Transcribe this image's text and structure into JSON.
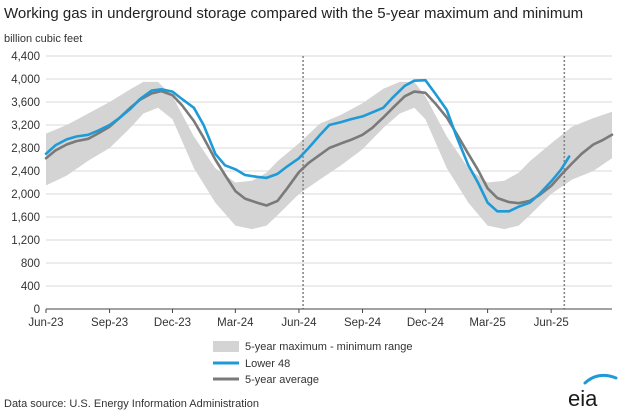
{
  "chart_data": {
    "type": "line",
    "title": "Working gas in underground storage compared with the 5-year maximum and minimum",
    "ylabel": "billion cubic feet",
    "xlabel": "",
    "ylim": [
      0,
      4400
    ],
    "yticks": [
      0,
      400,
      800,
      1200,
      1600,
      2000,
      2400,
      2800,
      3200,
      3600,
      4000,
      4400
    ],
    "ytick_labels": [
      "0",
      "400",
      "800",
      "1,200",
      "1,600",
      "2,000",
      "2,400",
      "2,800",
      "3,200",
      "3,600",
      "4,000",
      "4,400"
    ],
    "xlim": [
      "2023-06-01",
      "2025-08-28"
    ],
    "xticks": [
      "2023-06-01",
      "2023-09-01",
      "2023-12-01",
      "2024-03-01",
      "2024-06-01",
      "2024-09-01",
      "2024-12-01",
      "2025-03-01",
      "2025-06-01"
    ],
    "xtick_labels": [
      "Jun-23",
      "Sep-23",
      "Dec-23",
      "Mar-24",
      "Jun-24",
      "Sep-24",
      "Dec-24",
      "Mar-25",
      "Jun-25"
    ],
    "grid": "horizontal",
    "legend_position": "bottom-center",
    "vertical_markers": [
      "2024-06-07",
      "2025-06-20"
    ],
    "range_band": {
      "name": "5-year maximum - minimum range",
      "color": "#d4d4d4",
      "x": [
        "2023-06-01",
        "2023-07-01",
        "2023-08-01",
        "2023-09-01",
        "2023-10-01",
        "2023-10-20",
        "2023-11-10",
        "2023-12-01",
        "2024-01-01",
        "2024-02-01",
        "2024-03-01",
        "2024-03-25",
        "2024-04-15",
        "2024-05-01",
        "2024-06-01",
        "2024-07-01",
        "2024-08-01",
        "2024-09-01",
        "2024-10-01",
        "2024-10-25",
        "2024-11-15",
        "2024-12-01",
        "2025-01-01",
        "2025-02-01",
        "2025-03-01",
        "2025-03-25",
        "2025-04-15",
        "2025-05-01",
        "2025-06-01",
        "2025-07-01",
        "2025-08-01",
        "2025-08-28"
      ],
      "max": [
        3050,
        3200,
        3400,
        3600,
        3820,
        3950,
        3950,
        3700,
        3000,
        2450,
        2200,
        2230,
        2370,
        2570,
        2880,
        3220,
        3380,
        3580,
        3830,
        3950,
        3950,
        3700,
        3000,
        2450,
        2200,
        2230,
        2370,
        2570,
        2880,
        3170,
        3320,
        3430
      ],
      "min": [
        2150,
        2320,
        2580,
        2800,
        3150,
        3400,
        3500,
        3300,
        2450,
        1850,
        1450,
        1390,
        1450,
        1630,
        2000,
        2250,
        2500,
        2780,
        3150,
        3400,
        3500,
        3300,
        2450,
        1850,
        1450,
        1390,
        1450,
        1630,
        2000,
        2250,
        2400,
        2620
      ]
    },
    "series": [
      {
        "name": "Lower 48",
        "color": "#1e9bd7",
        "x": [
          "2023-06-01",
          "2023-06-15",
          "2023-07-01",
          "2023-07-15",
          "2023-08-01",
          "2023-08-15",
          "2023-09-01",
          "2023-09-15",
          "2023-10-01",
          "2023-10-15",
          "2023-11-01",
          "2023-11-15",
          "2023-12-01",
          "2023-12-15",
          "2024-01-01",
          "2024-01-15",
          "2024-02-01",
          "2024-02-15",
          "2024-03-01",
          "2024-03-15",
          "2024-04-01",
          "2024-04-15",
          "2024-05-01",
          "2024-05-15",
          "2024-06-01",
          "2024-06-15",
          "2024-07-01",
          "2024-07-15",
          "2024-08-01",
          "2024-08-15",
          "2024-09-01",
          "2024-09-15",
          "2024-10-01",
          "2024-10-15",
          "2024-11-01",
          "2024-11-15",
          "2024-12-01",
          "2024-12-15",
          "2025-01-01",
          "2025-01-15",
          "2025-02-01",
          "2025-02-15",
          "2025-03-01",
          "2025-03-15",
          "2025-04-01",
          "2025-04-15",
          "2025-05-01",
          "2025-05-15",
          "2025-06-01",
          "2025-06-15",
          "2025-06-27"
        ],
        "values": [
          2700,
          2850,
          2950,
          3000,
          3030,
          3100,
          3200,
          3320,
          3480,
          3650,
          3800,
          3820,
          3780,
          3650,
          3500,
          3200,
          2700,
          2500,
          2430,
          2330,
          2300,
          2280,
          2350,
          2480,
          2620,
          2800,
          3020,
          3200,
          3250,
          3300,
          3350,
          3420,
          3500,
          3680,
          3880,
          3970,
          3980,
          3750,
          3460,
          3000,
          2500,
          2200,
          1850,
          1700,
          1700,
          1780,
          1850,
          2000,
          2220,
          2420,
          2650
        ]
      },
      {
        "name": "5-year average",
        "color": "#7a7a7a",
        "x": [
          "2023-06-01",
          "2023-06-15",
          "2023-07-01",
          "2023-07-15",
          "2023-08-01",
          "2023-08-15",
          "2023-09-01",
          "2023-09-15",
          "2023-10-01",
          "2023-10-15",
          "2023-11-01",
          "2023-11-15",
          "2023-12-01",
          "2023-12-15",
          "2024-01-01",
          "2024-01-15",
          "2024-02-01",
          "2024-02-15",
          "2024-03-01",
          "2024-03-15",
          "2024-04-01",
          "2024-04-15",
          "2024-05-01",
          "2024-05-15",
          "2024-06-01",
          "2024-06-15",
          "2024-07-01",
          "2024-07-15",
          "2024-08-01",
          "2024-08-15",
          "2024-09-01",
          "2024-09-15",
          "2024-10-01",
          "2024-10-15",
          "2024-11-01",
          "2024-11-15",
          "2024-12-01",
          "2024-12-15",
          "2025-01-01",
          "2025-01-15",
          "2025-02-01",
          "2025-02-15",
          "2025-03-01",
          "2025-03-15",
          "2025-04-01",
          "2025-04-15",
          "2025-05-01",
          "2025-05-15",
          "2025-06-01",
          "2025-06-15",
          "2025-07-01",
          "2025-07-15",
          "2025-08-01",
          "2025-08-15",
          "2025-08-28"
        ],
        "values": [
          2620,
          2760,
          2860,
          2920,
          2960,
          3050,
          3170,
          3320,
          3500,
          3640,
          3750,
          3790,
          3720,
          3540,
          3270,
          2980,
          2600,
          2330,
          2050,
          1920,
          1850,
          1800,
          1880,
          2100,
          2380,
          2540,
          2680,
          2800,
          2880,
          2940,
          3030,
          3150,
          3330,
          3500,
          3700,
          3780,
          3760,
          3580,
          3330,
          3050,
          2700,
          2420,
          2100,
          1930,
          1860,
          1840,
          1880,
          1980,
          2140,
          2330,
          2530,
          2700,
          2860,
          2940,
          3030
        ]
      }
    ]
  },
  "footer": {
    "source": "Data source:  U.S. Energy Information Administration",
    "logo_text": "eia"
  }
}
